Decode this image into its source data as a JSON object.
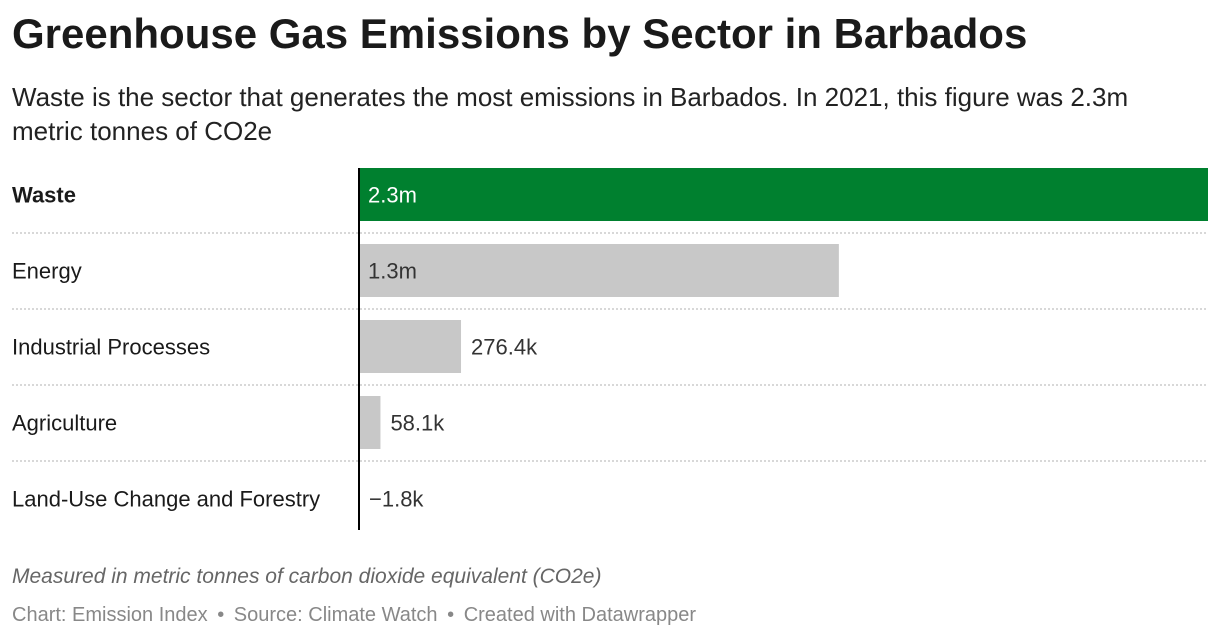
{
  "header": {
    "title": "Greenhouse Gas Emissions by Sector in Barbados",
    "subtitle": "Waste is the sector that generates the most emissions in Barbados. In 2021, this figure was 2.3m metric tonnes of CO2e"
  },
  "chart_data": {
    "type": "bar",
    "orientation": "horizontal",
    "categories": [
      "Waste",
      "Energy",
      "Industrial Processes",
      "Agriculture",
      "Land-Use Change and Forestry"
    ],
    "values": [
      2300000,
      1300000,
      276400,
      58100,
      -1800
    ],
    "value_labels": [
      "2.3m",
      "1.3m",
      "276.4k",
      "58.1k",
      "−1.8k"
    ],
    "highlight_index": 0,
    "colors": {
      "highlight": "#00802f",
      "default": "#c8c8c8",
      "axis": "#000000",
      "divider": "#cccccc"
    },
    "grid": false,
    "legend": "none"
  },
  "notes": "Measured in metric tonnes of carbon dioxide equivalent (CO2e)",
  "footer": {
    "chart_credit": "Chart: Emission Index",
    "source": "Source: Climate Watch",
    "tool": "Created with Datawrapper",
    "separator": "•"
  }
}
